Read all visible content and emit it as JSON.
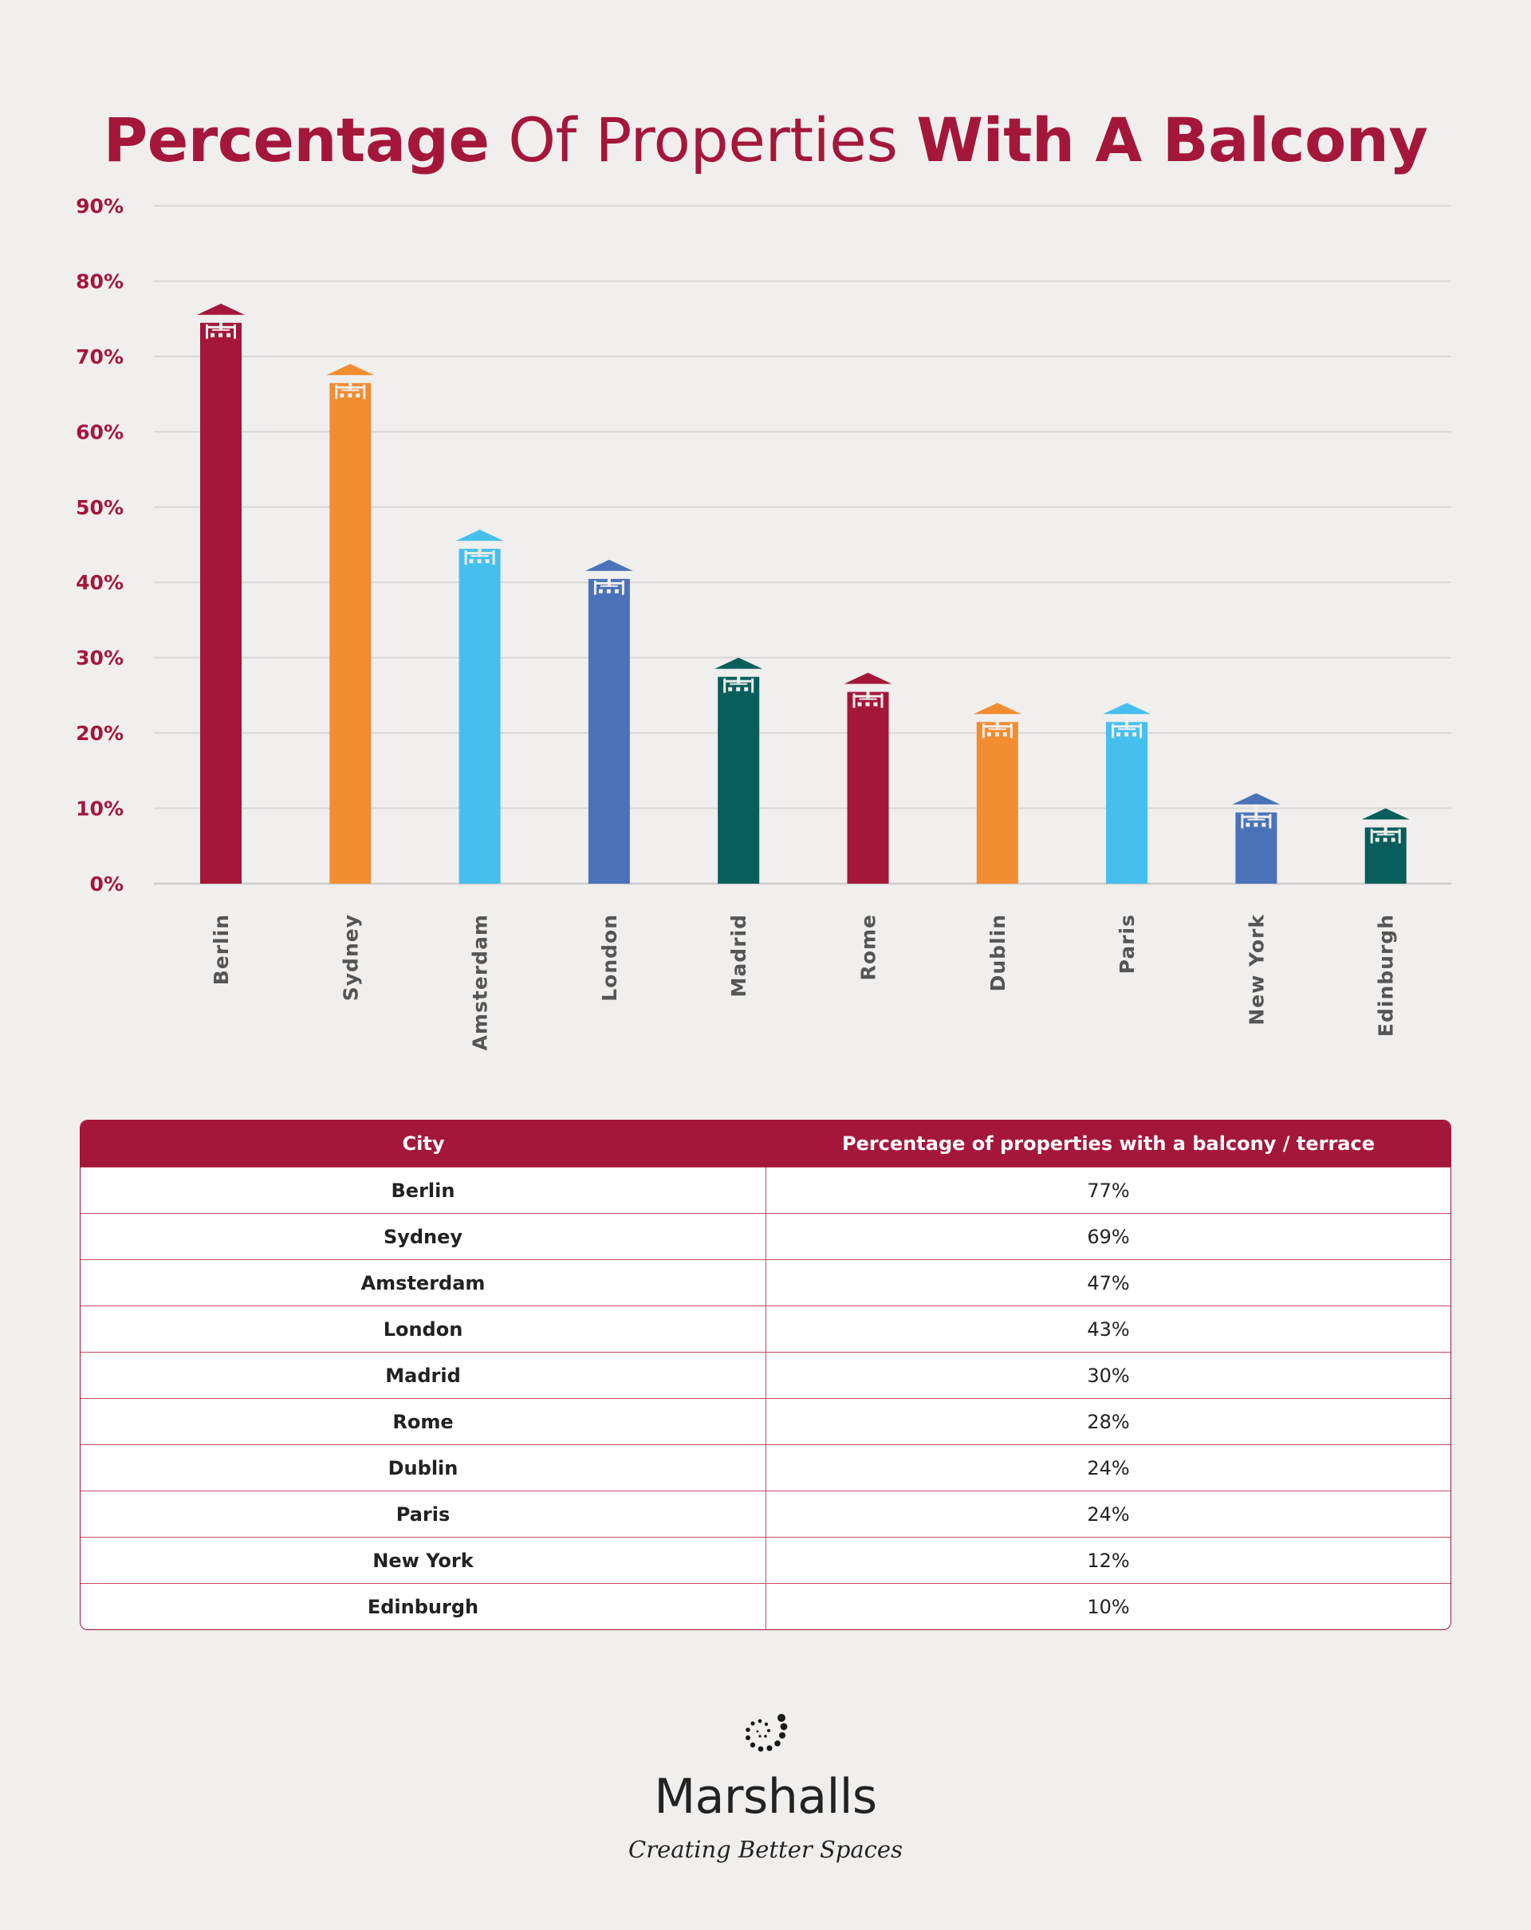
{
  "title": {
    "part1": "Percentage",
    "part2": " Of Properties ",
    "part3": "With A Balcony"
  },
  "chart_data": {
    "type": "bar",
    "categories": [
      "Berlin",
      "Sydney",
      "Amsterdam",
      "London",
      "Madrid",
      "Rome",
      "Dublin",
      "Paris",
      "New York",
      "Edinburgh"
    ],
    "values": [
      77,
      69,
      47,
      43,
      30,
      28,
      24,
      24,
      12,
      10
    ],
    "colors": [
      "#a4173a",
      "#f28c30",
      "#45c0ee",
      "#4a72b8",
      "#075e5b",
      "#a4173a",
      "#f28c30",
      "#45c0ee",
      "#4a72b8",
      "#075e5b"
    ],
    "yticks": [
      "0%",
      "10%",
      "20%",
      "30%",
      "40%",
      "50%",
      "60%",
      "70%",
      "80%",
      "90%"
    ],
    "ylim": [
      0,
      90
    ],
    "grid": true,
    "bar_top_icon": "balcony-icon"
  },
  "table": {
    "headers": [
      "City",
      "Percentage of properties with a balcony / terrace"
    ],
    "rows": [
      [
        "Berlin",
        "77%"
      ],
      [
        "Sydney",
        "69%"
      ],
      [
        "Amsterdam",
        "47%"
      ],
      [
        "London",
        "43%"
      ],
      [
        "Madrid",
        "30%"
      ],
      [
        "Rome",
        "28%"
      ],
      [
        "Dublin",
        "24%"
      ],
      [
        "Paris",
        "24%"
      ],
      [
        "New York",
        "12%"
      ],
      [
        "Edinburgh",
        "10%"
      ]
    ]
  },
  "brand": {
    "name": "Marshalls",
    "tagline": "Creating Better Spaces",
    "icon": "marshalls-spiral-logo-icon"
  }
}
